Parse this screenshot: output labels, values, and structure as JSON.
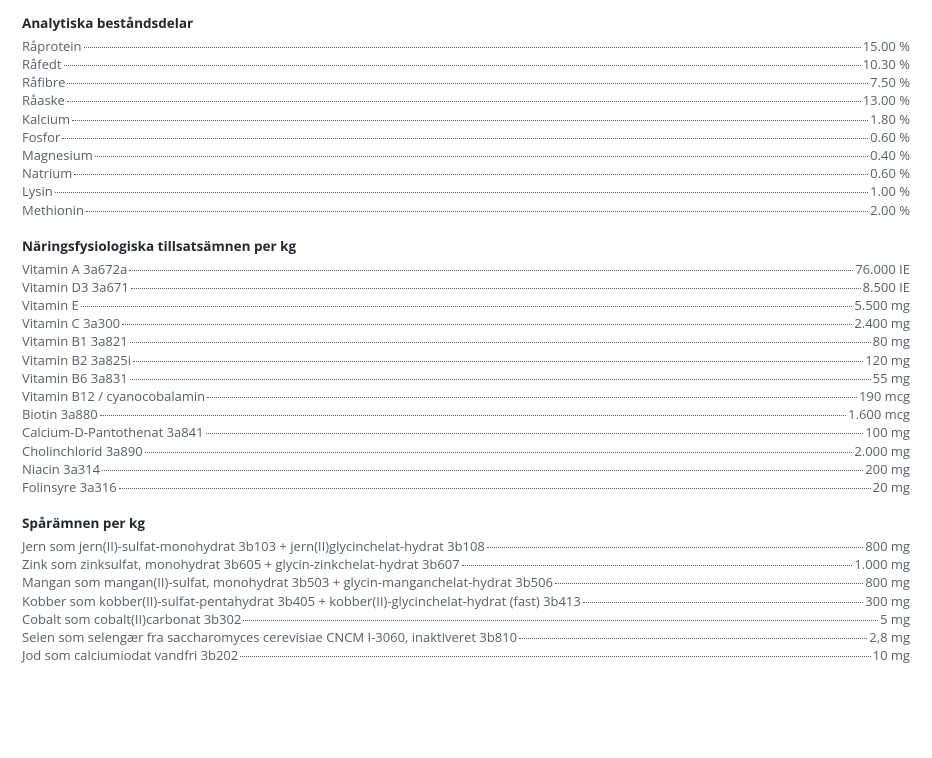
{
  "sections": [
    {
      "title": "Analytiska beståndsdelar",
      "rows": [
        {
          "label": "Råprotein",
          "value": "15.00 %"
        },
        {
          "label": "Råfedt",
          "value": "10.30 %"
        },
        {
          "label": "Råfibre",
          "value": "7.50 %"
        },
        {
          "label": "Råaske",
          "value": "13.00 %"
        },
        {
          "label": "Kalcium",
          "value": "1.80 %"
        },
        {
          "label": "Fosfor",
          "value": "0.60 %"
        },
        {
          "label": "Magnesium",
          "value": "0.40 %"
        },
        {
          "label": "Natrium",
          "value": "0.60 %"
        },
        {
          "label": "Lysin",
          "value": "1.00 %"
        },
        {
          "label": "Methionin",
          "value": "2.00 %"
        }
      ]
    },
    {
      "title": "Näringsfysiologiska tillsatsämnen per kg",
      "rows": [
        {
          "label": "Vitamin A 3a672a",
          "value": "76.000 IE"
        },
        {
          "label": "Vitamin D3 3a671",
          "value": "8.500 IE"
        },
        {
          "label": "Vitamin E",
          "value": "5.500 mg"
        },
        {
          "label": "Vitamin C 3a300",
          "value": "2.400 mg"
        },
        {
          "label": "Vitamin B1 3a821",
          "value": "80 mg"
        },
        {
          "label": "Vitamin B2 3a825i",
          "value": "120 mg"
        },
        {
          "label": "Vitamin B6 3a831",
          "value": "55 mg"
        },
        {
          "label": "Vitamin B12 / cyanocobalamin",
          "value": "190 mcg"
        },
        {
          "label": "Biotin 3a880",
          "value": "1.600 mcg"
        },
        {
          "label": "Calcium-D-Pantothenat 3a841",
          "value": "100 mg"
        },
        {
          "label": "Cholinchlorid 3a890",
          "value": "2.000 mg"
        },
        {
          "label": "Niacin 3a314",
          "value": "200 mg"
        },
        {
          "label": "Folinsyre 3a316",
          "value": "20 mg"
        }
      ]
    },
    {
      "title": "Spårämnen per kg",
      "rows": [
        {
          "label": "Jern som jern(II)-sulfat-monohydrat 3b103 + jern(II)glycinchelat-hydrat 3b108",
          "value": "800 mg"
        },
        {
          "label": "Zink som zinksulfat, monohydrat 3b605 + glycin-zinkchelat-hydrat 3b607",
          "value": "1.000 mg"
        },
        {
          "label": "Mangan som mangan(II)-sulfat, monohydrat 3b503 + glycin-manganchelat-hydrat 3b506",
          "value": "800 mg"
        },
        {
          "label": "Kobber som kobber(II)-sulfat-pentahydrat 3b405 + kobber(II)-glycinchelat-hydrat (fast) 3b413",
          "value": "300 mg"
        },
        {
          "label": "Cobalt som cobalt(II)carbonat 3b302",
          "value": "5 mg"
        },
        {
          "label": "Selen som selengær fra saccharomyces cerevisiae CNCM I-3060, inaktiveret 3b810",
          "value": "2,8 mg"
        },
        {
          "label": "Jod som calciumiodat vandfri 3b202",
          "value": "10 mg"
        }
      ]
    }
  ]
}
